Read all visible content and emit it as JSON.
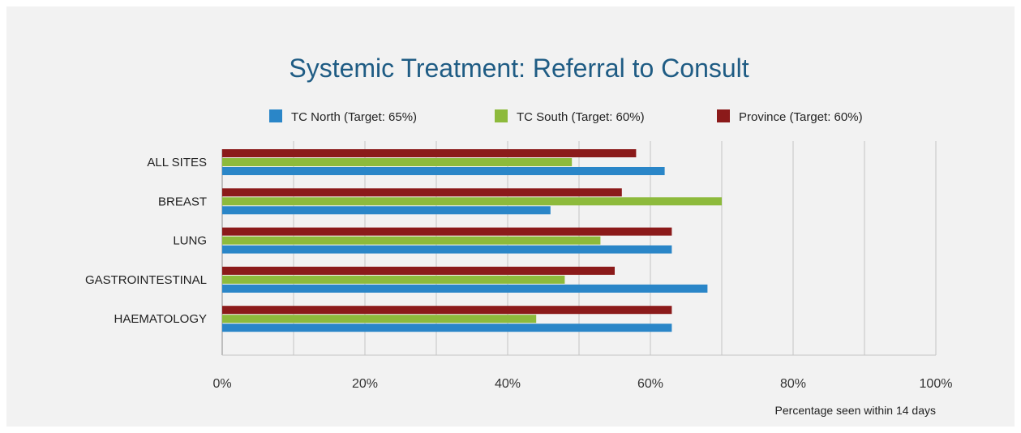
{
  "chart_data": {
    "type": "bar",
    "orientation": "horizontal",
    "title": "Systemic Treatment: Referral to Consult",
    "xlabel": "Percentage seen within 14 days",
    "ylabel": "",
    "categories": [
      "ALL SITES",
      "BREAST",
      "LUNG",
      "GASTROINTESTINAL",
      "HAEMATOLOGY"
    ],
    "series": [
      {
        "name": "TC North (Target: 65%)",
        "color": "#2a86c8",
        "values": [
          62,
          46,
          63,
          68,
          63
        ]
      },
      {
        "name": "TC South (Target: 60%)",
        "color": "#8dba3c",
        "values": [
          49,
          70,
          53,
          48,
          44
        ]
      },
      {
        "name": "Province (Target: 60%)",
        "color": "#8b1a1a",
        "values": [
          58,
          56,
          63,
          55,
          63
        ]
      }
    ],
    "xlim": [
      0,
      100
    ],
    "xticks": [
      0,
      20,
      40,
      60,
      80,
      100
    ],
    "tick_labels": [
      "0%",
      "20%",
      "40%",
      "60%",
      "80%",
      "100%"
    ],
    "grid": "vertical lines every 10%",
    "legend_position": "top"
  }
}
